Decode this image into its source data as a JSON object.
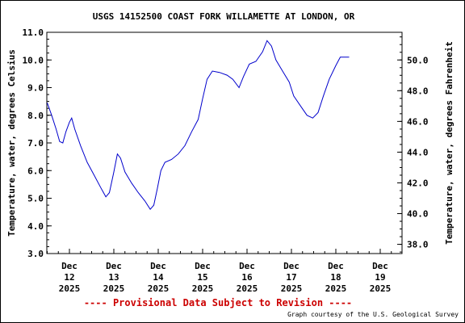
{
  "chart_data": {
    "type": "line",
    "title": "USGS 14152500 COAST FORK WILLAMETTE AT LONDON, OR",
    "ylabel": "Temperature, water, degrees Celsius",
    "ylabel_right": "Temperature, water, degrees Fahrenheit",
    "ylim": [
      3.0,
      11.0
    ],
    "yticks": [
      "3.0",
      "4.0",
      "5.0",
      "6.0",
      "7.0",
      "8.0",
      "9.0",
      "10.0",
      "11.0"
    ],
    "yticks_right": [
      "38.0",
      "40.0",
      "42.0",
      "44.0",
      "46.0",
      "48.0",
      "50.0"
    ],
    "xticks": [
      {
        "line1": "Dec",
        "line2": "12",
        "line3": "2025"
      },
      {
        "line1": "Dec",
        "line2": "13",
        "line3": "2025"
      },
      {
        "line1": "Dec",
        "line2": "14",
        "line3": "2025"
      },
      {
        "line1": "Dec",
        "line2": "15",
        "line3": "2025"
      },
      {
        "line1": "Dec",
        "line2": "16",
        "line3": "2025"
      },
      {
        "line1": "Dec",
        "line2": "17",
        "line3": "2025"
      },
      {
        "line1": "Dec",
        "line2": "18",
        "line3": "2025"
      },
      {
        "line1": "Dec",
        "line2": "19",
        "line3": "2025"
      }
    ],
    "x_unit": "days after Dec 12 2025 00:00",
    "series": [
      {
        "color": "#0000cc",
        "points": [
          [
            -0.5,
            8.45
          ],
          [
            -0.4,
            8.0
          ],
          [
            -0.3,
            7.5
          ],
          [
            -0.22,
            7.05
          ],
          [
            -0.15,
            7.0
          ],
          [
            -0.08,
            7.4
          ],
          [
            0.0,
            7.75
          ],
          [
            0.05,
            7.9
          ],
          [
            0.12,
            7.5
          ],
          [
            0.25,
            6.9
          ],
          [
            0.4,
            6.3
          ],
          [
            0.55,
            5.85
          ],
          [
            0.7,
            5.4
          ],
          [
            0.82,
            5.05
          ],
          [
            0.9,
            5.2
          ],
          [
            1.0,
            5.95
          ],
          [
            1.08,
            6.6
          ],
          [
            1.15,
            6.45
          ],
          [
            1.25,
            5.95
          ],
          [
            1.4,
            5.55
          ],
          [
            1.55,
            5.2
          ],
          [
            1.7,
            4.9
          ],
          [
            1.82,
            4.6
          ],
          [
            1.9,
            4.75
          ],
          [
            1.98,
            5.35
          ],
          [
            2.06,
            6.0
          ],
          [
            2.15,
            6.3
          ],
          [
            2.3,
            6.4
          ],
          [
            2.45,
            6.6
          ],
          [
            2.6,
            6.9
          ],
          [
            2.75,
            7.4
          ],
          [
            2.9,
            7.85
          ],
          [
            3.0,
            8.6
          ],
          [
            3.1,
            9.3
          ],
          [
            3.22,
            9.6
          ],
          [
            3.38,
            9.55
          ],
          [
            3.55,
            9.45
          ],
          [
            3.68,
            9.3
          ],
          [
            3.82,
            9.0
          ],
          [
            3.92,
            9.4
          ],
          [
            4.05,
            9.85
          ],
          [
            4.2,
            9.95
          ],
          [
            4.35,
            10.3
          ],
          [
            4.45,
            10.7
          ],
          [
            4.55,
            10.5
          ],
          [
            4.65,
            10.0
          ],
          [
            4.8,
            9.6
          ],
          [
            4.95,
            9.2
          ],
          [
            5.05,
            8.7
          ],
          [
            5.2,
            8.35
          ],
          [
            5.35,
            8.0
          ],
          [
            5.48,
            7.9
          ],
          [
            5.6,
            8.1
          ],
          [
            5.72,
            8.7
          ],
          [
            5.85,
            9.3
          ],
          [
            6.0,
            9.8
          ],
          [
            6.1,
            10.1
          ],
          [
            6.3,
            10.1
          ]
        ]
      }
    ]
  },
  "footer": {
    "provisional": "---- Provisional Data Subject to Revision ----",
    "credit": "Graph courtesy of the U.S. Geological Survey"
  }
}
